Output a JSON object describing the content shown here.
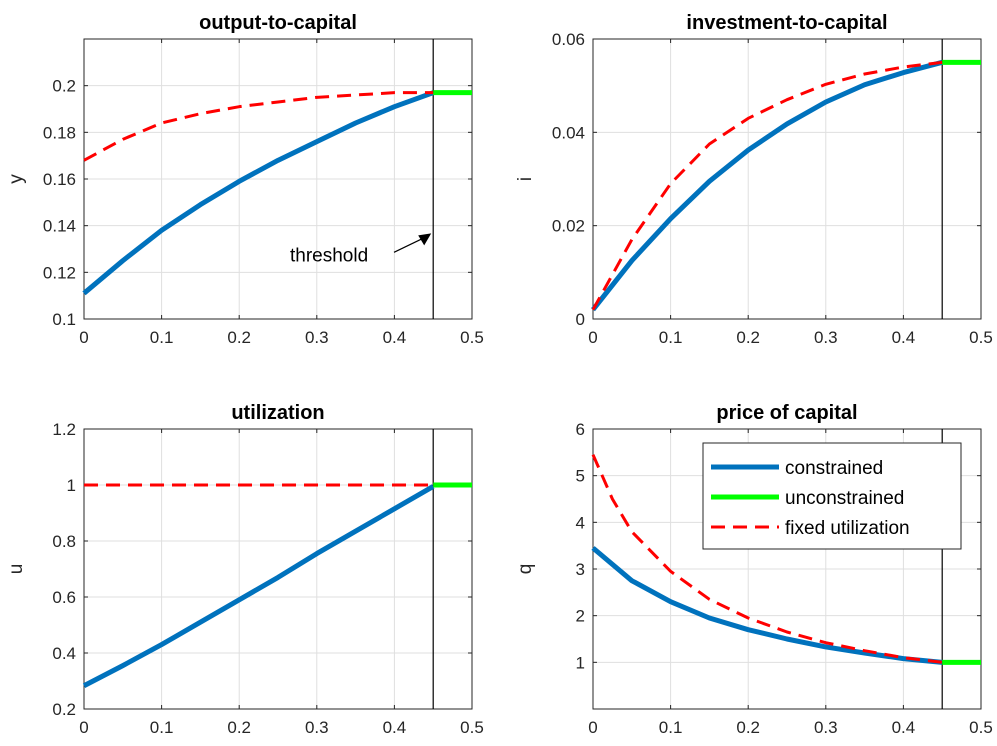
{
  "chart_data": [
    {
      "type": "line",
      "title": "output-to-capital",
      "xlabel": "",
      "ylabel": "y",
      "xlim": [
        0,
        0.5
      ],
      "ylim": [
        0.1,
        0.22
      ],
      "xticks": [
        "0",
        "0.1",
        "0.2",
        "0.3",
        "0.4",
        "0.5"
      ],
      "yticks": [
        "0.1",
        "0.12",
        "0.14",
        "0.16",
        "0.18",
        "0.2"
      ],
      "grid": true,
      "threshold_x": 0.45,
      "annotation": "threshold",
      "series": [
        {
          "name": "constrained",
          "color": "#0072BD",
          "dash": "solid",
          "x": [
            0,
            0.05,
            0.1,
            0.15,
            0.2,
            0.25,
            0.3,
            0.35,
            0.4,
            0.45
          ],
          "y": [
            0.111,
            0.125,
            0.138,
            0.149,
            0.159,
            0.168,
            0.176,
            0.184,
            0.191,
            0.197
          ]
        },
        {
          "name": "unconstrained",
          "color": "#00FF00",
          "dash": "solid",
          "x": [
            0.45,
            0.5
          ],
          "y": [
            0.197,
            0.197
          ]
        },
        {
          "name": "fixed utilization",
          "color": "#FF0000",
          "dash": "dashed",
          "x": [
            0,
            0.05,
            0.1,
            0.15,
            0.2,
            0.25,
            0.3,
            0.35,
            0.4,
            0.45
          ],
          "y": [
            0.168,
            0.177,
            0.184,
            0.188,
            0.191,
            0.193,
            0.195,
            0.196,
            0.197,
            0.197
          ]
        }
      ]
    },
    {
      "type": "line",
      "title": "investment-to-capital",
      "xlabel": "",
      "ylabel": "i",
      "xlim": [
        0,
        0.5
      ],
      "ylim": [
        0,
        0.06
      ],
      "xticks": [
        "0",
        "0.1",
        "0.2",
        "0.3",
        "0.4",
        "0.5"
      ],
      "yticks": [
        "0",
        "0.02",
        "0.04",
        "0.06"
      ],
      "grid": true,
      "threshold_x": 0.45,
      "series": [
        {
          "name": "constrained",
          "color": "#0072BD",
          "dash": "solid",
          "x": [
            0,
            0.05,
            0.1,
            0.15,
            0.2,
            0.25,
            0.3,
            0.35,
            0.4,
            0.45
          ],
          "y": [
            0.002,
            0.0125,
            0.0215,
            0.0295,
            0.0362,
            0.0418,
            0.0465,
            0.0502,
            0.0528,
            0.055
          ]
        },
        {
          "name": "unconstrained",
          "color": "#00FF00",
          "dash": "solid",
          "x": [
            0.45,
            0.5
          ],
          "y": [
            0.055,
            0.055
          ]
        },
        {
          "name": "fixed utilization",
          "color": "#FF0000",
          "dash": "dashed",
          "x": [
            0,
            0.05,
            0.1,
            0.15,
            0.2,
            0.25,
            0.3,
            0.35,
            0.4,
            0.45
          ],
          "y": [
            0.002,
            0.017,
            0.029,
            0.0375,
            0.043,
            0.047,
            0.0503,
            0.0525,
            0.054,
            0.055
          ]
        }
      ]
    },
    {
      "type": "line",
      "title": "utilization",
      "xlabel": "",
      "ylabel": "u",
      "xlim": [
        0,
        0.5
      ],
      "ylim": [
        0.2,
        1.2
      ],
      "xticks": [
        "0",
        "0.1",
        "0.2",
        "0.3",
        "0.4",
        "0.5"
      ],
      "yticks": [
        "0.2",
        "0.4",
        "0.6",
        "0.8",
        "1",
        "1.2"
      ],
      "grid": true,
      "threshold_x": 0.45,
      "series": [
        {
          "name": "constrained",
          "color": "#0072BD",
          "dash": "solid",
          "x": [
            0,
            0.05,
            0.1,
            0.15,
            0.2,
            0.25,
            0.3,
            0.35,
            0.4,
            0.45
          ],
          "y": [
            0.283,
            0.355,
            0.43,
            0.51,
            0.59,
            0.67,
            0.755,
            0.835,
            0.915,
            0.995
          ]
        },
        {
          "name": "unconstrained",
          "color": "#00FF00",
          "dash": "solid",
          "x": [
            0.45,
            0.5
          ],
          "y": [
            1.0,
            1.0
          ]
        },
        {
          "name": "fixed utilization",
          "color": "#FF0000",
          "dash": "dashed",
          "x": [
            0,
            0.45
          ],
          "y": [
            1.0,
            1.0
          ]
        }
      ]
    },
    {
      "type": "line",
      "title": "price of capital",
      "xlabel": "",
      "ylabel": "q",
      "xlim": [
        0,
        0.5
      ],
      "ylim": [
        0,
        6
      ],
      "xticks": [
        "0",
        "0.1",
        "0.2",
        "0.3",
        "0.4",
        "0.5"
      ],
      "yticks": [
        "1",
        "2",
        "3",
        "4",
        "5",
        "6"
      ],
      "grid": true,
      "threshold_x": 0.45,
      "legend": {
        "position": "top-right",
        "entries": [
          "constrained",
          "unconstrained",
          "fixed utilization"
        ]
      },
      "series": [
        {
          "name": "constrained",
          "color": "#0072BD",
          "dash": "solid",
          "x": [
            0,
            0.05,
            0.1,
            0.15,
            0.2,
            0.25,
            0.3,
            0.35,
            0.4,
            0.45
          ],
          "y": [
            3.45,
            2.75,
            2.3,
            1.95,
            1.7,
            1.5,
            1.33,
            1.2,
            1.08,
            1.0
          ]
        },
        {
          "name": "unconstrained",
          "color": "#00FF00",
          "dash": "solid",
          "x": [
            0.45,
            0.5
          ],
          "y": [
            1.0,
            1.0
          ]
        },
        {
          "name": "fixed utilization",
          "color": "#FF0000",
          "dash": "dashed",
          "x": [
            0,
            0.025,
            0.05,
            0.1,
            0.15,
            0.2,
            0.25,
            0.3,
            0.35,
            0.4,
            0.45
          ],
          "y": [
            5.45,
            4.5,
            3.8,
            2.95,
            2.35,
            1.95,
            1.65,
            1.42,
            1.25,
            1.1,
            1.0
          ]
        }
      ]
    }
  ]
}
